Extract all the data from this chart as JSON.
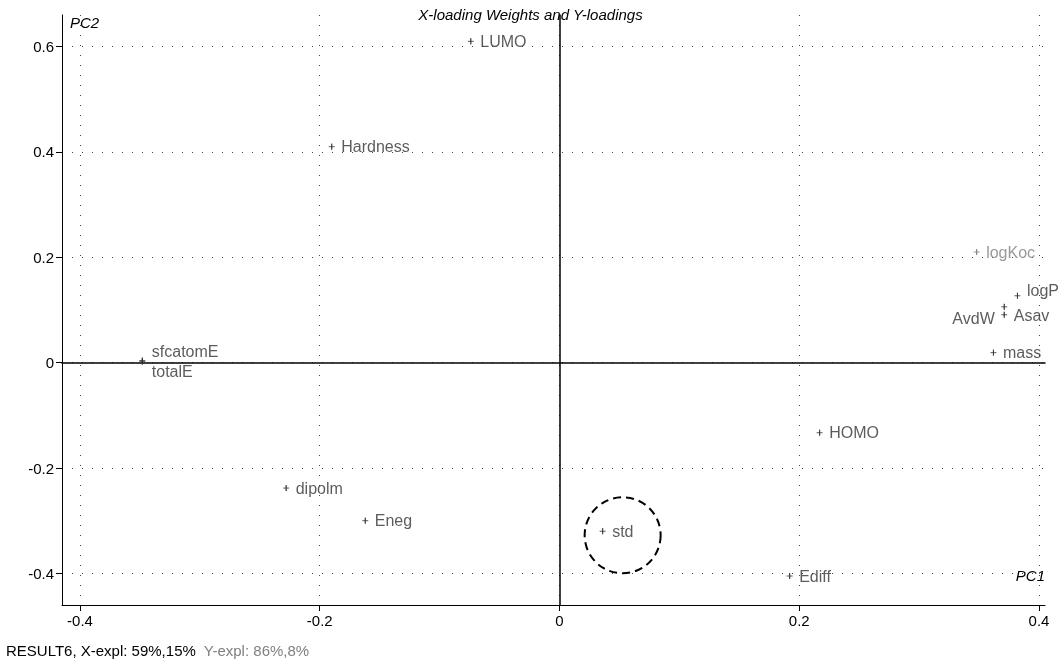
{
  "chart_data": {
    "type": "scatter",
    "title": "X-loading Weights and Y-loadings",
    "xlabel": "PC1",
    "ylabel": "PC2",
    "annotations": [
      "RESULT6, X-expl: 59%,15%",
      "Y-expl: 86%,8%"
    ],
    "xlim": [
      -0.415,
      0.405
    ],
    "ylim": [
      -0.46,
      0.66
    ],
    "xticks": [
      -0.4,
      -0.2,
      0,
      0.2,
      0.4
    ],
    "yticks": [
      -0.4,
      -0.2,
      0,
      0.2,
      0.4,
      0.6
    ],
    "grid": true,
    "legend": false,
    "marker": "cross",
    "series": [
      {
        "name": "LUMO",
        "color": "#333333",
        "x": [
          -0.074
        ],
        "values": [
          0.61
        ]
      },
      {
        "name": "Hardness",
        "color": "#333333",
        "x": [
          -0.19
        ],
        "values": [
          0.41
        ]
      },
      {
        "name": "sfcatomE",
        "color": "#333333",
        "x": [
          -0.348
        ],
        "values": [
          0.004
        ]
      },
      {
        "name": "totalE",
        "color": "#333333",
        "x": [
          -0.348
        ],
        "values": [
          0.002
        ]
      },
      {
        "name": "logKoc",
        "color": "#808080",
        "x": [
          0.348
        ],
        "values": [
          0.21
        ]
      },
      {
        "name": "logP",
        "color": "#333333",
        "x": [
          0.382
        ],
        "values": [
          0.127
        ]
      },
      {
        "name": "Asav",
        "color": "#333333",
        "x": [
          0.371
        ],
        "values": [
          0.106
        ]
      },
      {
        "name": "AvdW",
        "color": "#333333",
        "x": [
          0.371
        ],
        "values": [
          0.091
        ]
      },
      {
        "name": "mass",
        "color": "#333333",
        "x": [
          0.362
        ],
        "values": [
          0.019
        ]
      },
      {
        "name": "HOMO",
        "color": "#333333",
        "x": [
          0.217
        ],
        "values": [
          -0.133
        ]
      },
      {
        "name": "dipolm",
        "color": "#333333",
        "x": [
          -0.228
        ],
        "values": [
          -0.238
        ]
      },
      {
        "name": "Eneg",
        "color": "#333333",
        "x": [
          -0.162
        ],
        "values": [
          -0.3
        ]
      },
      {
        "name": "std",
        "color": "#333333",
        "x": [
          0.036
        ],
        "values": [
          -0.32
        ]
      },
      {
        "name": "Ediff",
        "color": "#333333",
        "x": [
          0.192
        ],
        "values": [
          -0.405
        ]
      }
    ]
  }
}
